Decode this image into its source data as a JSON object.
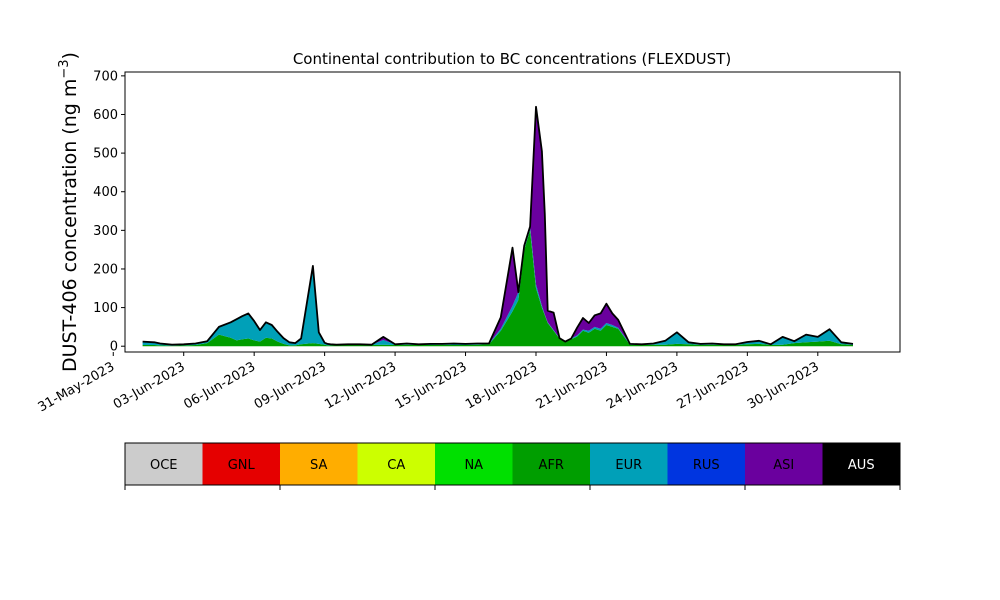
{
  "chart_data": {
    "type": "area",
    "title": "Continental contribution to BC concentrations (FLEXDUST)",
    "ylabel": "DUST-406 concentration (ng m",
    "ylabel_exponent": "−3",
    "ylabel_close": ")",
    "ylim": [
      -15,
      710
    ],
    "xlim": [
      "2023-05-31T12:00",
      "2023-07-03T12:00"
    ],
    "yticks": [
      0,
      100,
      200,
      300,
      400,
      500,
      600,
      700
    ],
    "xticks": [
      "31-May-2023",
      "03-Jun-2023",
      "06-Jun-2023",
      "09-Jun-2023",
      "12-Jun-2023",
      "15-Jun-2023",
      "18-Jun-2023",
      "21-Jun-2023",
      "24-Jun-2023",
      "27-Jun-2023",
      "30-Jun-2023"
    ],
    "x_tick_dates": [
      "2023-05-31",
      "2023-06-03",
      "2023-06-06",
      "2023-06-09",
      "2023-06-12",
      "2023-06-15",
      "2023-06-18",
      "2023-06-21",
      "2023-06-24",
      "2023-06-27",
      "2023-06-30"
    ],
    "legend": [
      "OCE",
      "GNL",
      "SA",
      "CA",
      "NA",
      "AFR",
      "EUR",
      "RUS",
      "ASI",
      "AUS"
    ],
    "legend_colors": [
      "#cccccc",
      "#e50000",
      "#ffad00",
      "#ccff00",
      "#00e000",
      "#009e00",
      "#00a0b8",
      "#0035e0",
      "#6a009e",
      "#000000"
    ],
    "legend_text_colors": [
      "#000000",
      "#000000",
      "#000000",
      "#000000",
      "#000000",
      "#000000",
      "#000000",
      "#000000",
      "#000000",
      "#ffffff"
    ],
    "legend_position": "below plot",
    "total_color": "#000000",
    "x": [
      "2023-06-01T06:00",
      "2023-06-01T18:00",
      "2023-06-02T00:00",
      "2023-06-02T12:00",
      "2023-06-03T00:00",
      "2023-06-03T12:00",
      "2023-06-04T00:00",
      "2023-06-04T12:00",
      "2023-06-05T00:00",
      "2023-06-05T06:00",
      "2023-06-05T12:00",
      "2023-06-05T18:00",
      "2023-06-06T00:00",
      "2023-06-06T06:00",
      "2023-06-06T12:00",
      "2023-06-06T18:00",
      "2023-06-07T00:00",
      "2023-06-07T06:00",
      "2023-06-07T12:00",
      "2023-06-07T18:00",
      "2023-06-08T00:00",
      "2023-06-08T12:00",
      "2023-06-08T18:00",
      "2023-06-09T00:00",
      "2023-06-09T03:00",
      "2023-06-09T06:00",
      "2023-06-09T12:00",
      "2023-06-10T00:00",
      "2023-06-10T12:00",
      "2023-06-11T00:00",
      "2023-06-11T12:00",
      "2023-06-12T00:00",
      "2023-06-12T12:00",
      "2023-06-13T00:00",
      "2023-06-13T12:00",
      "2023-06-14T00:00",
      "2023-06-14T12:00",
      "2023-06-15T00:00",
      "2023-06-15T12:00",
      "2023-06-16T00:00",
      "2023-06-16T12:00",
      "2023-06-17T00:00",
      "2023-06-17T06:00",
      "2023-06-17T12:00",
      "2023-06-17T18:00",
      "2023-06-18T00:00",
      "2023-06-18T06:00",
      "2023-06-18T09:00",
      "2023-06-18T12:00",
      "2023-06-18T18:00",
      "2023-06-19T00:00",
      "2023-06-19T06:00",
      "2023-06-19T12:00",
      "2023-06-19T18:00",
      "2023-06-20T00:00",
      "2023-06-20T06:00",
      "2023-06-20T12:00",
      "2023-06-20T18:00",
      "2023-06-21T00:00",
      "2023-06-21T06:00",
      "2023-06-21T12:00",
      "2023-06-22T00:00",
      "2023-06-22T12:00",
      "2023-06-23T00:00",
      "2023-06-23T12:00",
      "2023-06-24T00:00",
      "2023-06-24T12:00",
      "2023-06-25T00:00",
      "2023-06-25T12:00",
      "2023-06-26T00:00",
      "2023-06-26T12:00",
      "2023-06-27T00:00",
      "2023-06-27T12:00",
      "2023-06-28T00:00",
      "2023-06-28T12:00",
      "2023-06-29T00:00",
      "2023-06-29T12:00",
      "2023-06-30T00:00",
      "2023-06-30T12:00",
      "2023-07-01T00:00",
      "2023-07-01T12:00"
    ],
    "series": [
      {
        "name": "AFR",
        "color": "#009e00",
        "values": [
          3,
          3,
          2,
          1,
          2,
          3,
          8,
          30,
          22,
          15,
          18,
          20,
          15,
          12,
          22,
          20,
          12,
          6,
          2,
          2,
          5,
          8,
          6,
          4,
          2,
          2,
          2,
          4,
          3,
          3,
          4,
          3,
          4,
          3,
          3,
          4,
          3,
          3,
          4,
          5,
          40,
          90,
          120,
          250,
          300,
          150,
          100,
          80,
          60,
          40,
          20,
          10,
          18,
          25,
          40,
          35,
          45,
          40,
          55,
          50,
          45,
          4,
          3,
          4,
          4,
          6,
          5,
          3,
          4,
          3,
          3,
          5,
          6,
          3,
          4,
          8,
          10,
          12,
          14,
          5,
          3
        ]
      },
      {
        "name": "EUR",
        "color": "#00a0b8",
        "values": [
          7,
          6,
          5,
          3,
          3,
          4,
          5,
          20,
          40,
          55,
          60,
          65,
          50,
          30,
          40,
          35,
          25,
          15,
          8,
          6,
          15,
          200,
          30,
          5,
          4,
          3,
          2,
          1,
          2,
          1,
          12,
          2,
          3,
          2,
          3,
          2,
          4,
          3,
          3,
          2,
          5,
          15,
          20,
          10,
          10,
          10,
          5,
          2,
          2,
          2,
          1,
          2,
          2,
          3,
          3,
          5,
          5,
          5,
          5,
          5,
          3,
          2,
          2,
          3,
          10,
          30,
          5,
          3,
          3,
          2,
          2,
          6,
          8,
          2,
          20,
          5,
          20,
          12,
          30,
          5,
          3
        ]
      },
      {
        "name": "ASI",
        "color": "#6a009e",
        "values": [
          1,
          1,
          0,
          0,
          0,
          0,
          0,
          0,
          0,
          0,
          0,
          0,
          0,
          0,
          0,
          0,
          0,
          0,
          0,
          0,
          0,
          0,
          0,
          0,
          0,
          0,
          0,
          0,
          0,
          0,
          8,
          0,
          0,
          0,
          0,
          0,
          0,
          0,
          0,
          0,
          30,
          150,
          0,
          0,
          0,
          460,
          400,
          260,
          30,
          45,
          0,
          0,
          0,
          20,
          30,
          20,
          30,
          40,
          50,
          30,
          20,
          0,
          0,
          0,
          0,
          0,
          0,
          0,
          0,
          0,
          0,
          0,
          0,
          0,
          0,
          0,
          0,
          0,
          0,
          0,
          0
        ]
      }
    ],
    "total": [
      12,
      10,
      7,
      4,
      5,
      7,
      13,
      50,
      62,
      70,
      78,
      85,
      65,
      42,
      62,
      55,
      37,
      21,
      10,
      8,
      20,
      208,
      36,
      9,
      6,
      5,
      4,
      5,
      5,
      4,
      24,
      5,
      7,
      5,
      6,
      6,
      7,
      6,
      7,
      7,
      75,
      255,
      140,
      260,
      310,
      620,
      505,
      342,
      92,
      87,
      21,
      12,
      20,
      48,
      73,
      60,
      80,
      85,
      110,
      85,
      68,
      6,
      5,
      7,
      14,
      36,
      10,
      6,
      7,
      5,
      5,
      11,
      14,
      5,
      24,
      13,
      30,
      24,
      44,
      10,
      6
    ]
  }
}
